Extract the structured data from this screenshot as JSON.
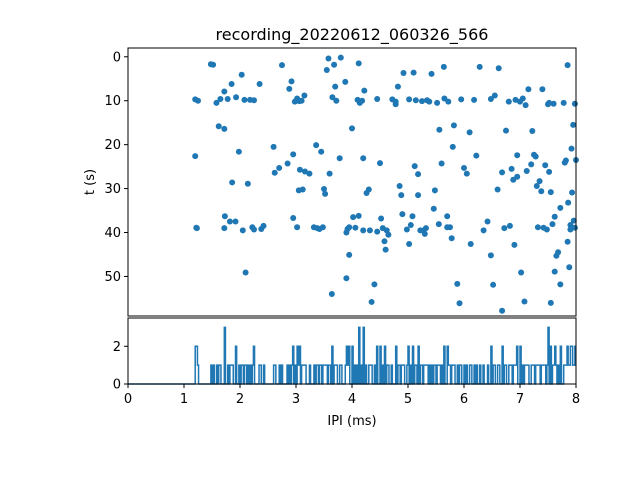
{
  "chart_data": [
    {
      "type": "scatter",
      "title": "recording_20220612_060326_566",
      "xlabel": "",
      "ylabel": "t (s)",
      "xlim": [
        0,
        8
      ],
      "ylim": [
        59,
        -2
      ],
      "yticks": [
        0,
        10,
        20,
        30,
        40,
        50
      ],
      "marker_color": "#1f77b4",
      "points": [
        [
          1.48,
          1.7
        ],
        [
          1.52,
          1.8
        ],
        [
          1.58,
          10.5
        ],
        [
          1.65,
          9.6
        ],
        [
          1.72,
          7.9
        ],
        [
          1.78,
          9.6
        ],
        [
          1.85,
          6.2
        ],
        [
          1.93,
          9.2
        ],
        [
          2.03,
          4.1
        ],
        [
          2.08,
          9.8
        ],
        [
          2.18,
          9.8
        ],
        [
          2.25,
          9.9
        ],
        [
          2.35,
          6.2
        ],
        [
          1.2,
          9.7
        ],
        [
          1.25,
          10
        ],
        [
          1.62,
          15.8
        ],
        [
          1.72,
          16.4
        ],
        [
          1.98,
          21.6
        ],
        [
          2.6,
          20.5
        ],
        [
          1.72,
          39
        ],
        [
          1.73,
          36.3
        ],
        [
          1.82,
          37.5
        ],
        [
          1.86,
          28.6
        ],
        [
          1.92,
          37.5
        ],
        [
          2.05,
          39.5
        ],
        [
          2.14,
          28.9
        ],
        [
          2.22,
          38.8
        ],
        [
          2.25,
          39.3
        ],
        [
          2.38,
          39.2
        ],
        [
          2.42,
          38.5
        ],
        [
          1.2,
          22.6
        ],
        [
          1.22,
          38.9
        ],
        [
          1.23,
          39
        ],
        [
          2.1,
          49.1
        ],
        [
          2.75,
          1.9
        ],
        [
          2.92,
          5.6
        ],
        [
          2.95,
          36.7
        ],
        [
          2.98,
          10.2
        ],
        [
          3.02,
          9.5
        ],
        [
          3.06,
          10.1
        ],
        [
          3.1,
          10
        ],
        [
          3.15,
          8.8
        ],
        [
          3.02,
          38.8
        ],
        [
          3.05,
          30.4
        ],
        [
          3.07,
          25.7
        ],
        [
          3.12,
          30.2
        ],
        [
          3.16,
          26.1
        ],
        [
          3.24,
          26.6
        ],
        [
          3.32,
          38.8
        ],
        [
          3.38,
          39
        ],
        [
          3.42,
          39.2
        ],
        [
          3.48,
          38.8
        ],
        [
          3.55,
          3
        ],
        [
          3.58,
          0.4
        ],
        [
          3.64,
          54
        ],
        [
          3.68,
          1.8
        ],
        [
          3.72,
          10
        ],
        [
          3.78,
          23.1
        ],
        [
          3.88,
          5.7
        ],
        [
          3.9,
          40
        ],
        [
          3.92,
          39.2
        ],
        [
          3.95,
          38.8
        ],
        [
          4.0,
          16.3
        ],
        [
          4.02,
          36.5
        ],
        [
          4.06,
          38.9
        ],
        [
          4.1,
          9.8
        ],
        [
          4.12,
          1.5
        ],
        [
          4.14,
          10.5
        ],
        [
          4.18,
          10
        ],
        [
          4.2,
          23.1
        ],
        [
          4.22,
          7.7
        ],
        [
          4.26,
          31
        ],
        [
          4.3,
          30.2
        ],
        [
          4.32,
          39.5
        ],
        [
          4.35,
          55.8
        ],
        [
          4.4,
          51.8
        ],
        [
          4.45,
          9.6
        ],
        [
          4.52,
          36.8
        ],
        [
          4.55,
          39
        ],
        [
          4.58,
          42
        ],
        [
          4.62,
          39.5
        ],
        [
          4.65,
          40.5
        ],
        [
          4.72,
          9.7
        ],
        [
          4.78,
          10.2
        ],
        [
          4.85,
          29.4
        ],
        [
          4.88,
          31.5
        ],
        [
          4.92,
          3.7
        ],
        [
          4.98,
          39.3
        ],
        [
          5.02,
          9.7
        ],
        [
          5.1,
          3.6
        ],
        [
          5.14,
          9.9
        ],
        [
          5.18,
          31.5
        ],
        [
          5.22,
          39.5
        ],
        [
          5.25,
          10.1
        ],
        [
          5.28,
          39.5
        ],
        [
          5.3,
          40.3
        ],
        [
          5.34,
          9.9
        ],
        [
          5.38,
          10.2
        ],
        [
          5.42,
          3.9
        ],
        [
          5.46,
          34.6
        ],
        [
          5.52,
          10.5
        ],
        [
          5.56,
          16.6
        ],
        [
          5.6,
          24.3
        ],
        [
          5.64,
          2.3
        ],
        [
          5.7,
          38.8
        ],
        [
          5.72,
          10.2
        ],
        [
          5.78,
          41.3
        ],
        [
          2.62,
          26.4
        ],
        [
          2.7,
          25.3
        ],
        [
          2.85,
          24.3
        ],
        [
          2.88,
          7.3
        ],
        [
          2.95,
          22.2
        ],
        [
          3.36,
          20.1
        ],
        [
          3.45,
          21.6
        ],
        [
          3.5,
          30.1
        ],
        [
          3.52,
          31.2
        ],
        [
          3.6,
          26.6
        ],
        [
          3.65,
          9.2
        ],
        [
          3.7,
          6.8
        ],
        [
          3.8,
          0.2
        ],
        [
          3.9,
          50.4
        ],
        [
          3.95,
          45.1
        ],
        [
          4.12,
          36.2
        ],
        [
          4.2,
          39.5
        ],
        [
          4.45,
          39.8
        ],
        [
          4.5,
          24.2
        ],
        [
          4.6,
          43.9
        ],
        [
          4.78,
          10.8
        ],
        [
          4.82,
          6.8
        ],
        [
          4.9,
          35.8
        ],
        [
          5.02,
          42.6
        ],
        [
          5.05,
          38.3
        ],
        [
          5.08,
          36.3
        ],
        [
          5.12,
          24.9
        ],
        [
          5.18,
          26.7
        ],
        [
          5.32,
          39
        ],
        [
          5.48,
          30.4
        ],
        [
          5.55,
          38.1
        ],
        [
          5.65,
          9.5
        ],
        [
          5.7,
          36.3
        ],
        [
          5.75,
          38.8
        ],
        [
          5.8,
          20.5
        ],
        [
          5.82,
          15.6
        ],
        [
          5.88,
          51.7
        ],
        [
          5.92,
          56.1
        ],
        [
          5.95,
          9.7
        ],
        [
          6.0,
          25.3
        ],
        [
          6.05,
          26.6
        ],
        [
          6.1,
          17.2
        ],
        [
          6.12,
          42.6
        ],
        [
          6.18,
          9.8
        ],
        [
          6.22,
          22.5
        ],
        [
          6.28,
          2.3
        ],
        [
          6.35,
          39.5
        ],
        [
          6.42,
          37.5
        ],
        [
          6.48,
          9.6
        ],
        [
          6.55,
          8.8
        ],
        [
          6.62,
          2.6
        ],
        [
          6.68,
          26.3
        ],
        [
          6.72,
          39
        ],
        [
          6.8,
          10.2
        ],
        [
          6.85,
          25.5
        ],
        [
          6.92,
          9.8
        ],
        [
          6.95,
          27.3
        ],
        [
          7.0,
          10.2
        ],
        [
          7.05,
          9.5
        ],
        [
          7.1,
          11
        ],
        [
          7.15,
          7.4
        ],
        [
          7.2,
          24.5
        ],
        [
          7.25,
          22.3
        ],
        [
          7.3,
          29.4
        ],
        [
          7.32,
          38.8
        ],
        [
          7.38,
          30.6
        ],
        [
          7.42,
          38.9
        ],
        [
          7.48,
          39.3
        ],
        [
          7.52,
          10.5
        ],
        [
          7.58,
          38.1
        ],
        [
          7.62,
          36.4
        ],
        [
          7.68,
          44.5
        ],
        [
          7.72,
          51.8
        ],
        [
          7.78,
          10.5
        ],
        [
          7.82,
          23.6
        ],
        [
          7.86,
          33.2
        ],
        [
          7.9,
          38.3
        ],
        [
          7.95,
          15.5
        ],
        [
          8.0,
          23.5
        ],
        [
          6.48,
          45.2
        ],
        [
          6.52,
          51.9
        ],
        [
          6.6,
          30.2
        ],
        [
          6.68,
          57.8
        ],
        [
          6.75,
          16.8
        ],
        [
          6.82,
          38.5
        ],
        [
          6.88,
          28
        ],
        [
          6.9,
          42.8
        ],
        [
          6.95,
          22.4
        ],
        [
          7.02,
          49.1
        ],
        [
          7.08,
          55.7
        ],
        [
          7.12,
          26
        ],
        [
          7.22,
          16.9
        ],
        [
          7.28,
          22.7
        ],
        [
          7.35,
          28.3
        ],
        [
          7.4,
          7.4
        ],
        [
          7.45,
          24.7
        ],
        [
          7.5,
          10.8
        ],
        [
          7.52,
          26.2
        ],
        [
          7.55,
          30.8
        ],
        [
          7.6,
          10.7
        ],
        [
          7.62,
          48.9
        ],
        [
          7.65,
          45.3
        ],
        [
          7.72,
          34.4
        ],
        [
          7.8,
          24.1
        ],
        [
          7.85,
          42.1
        ],
        [
          7.88,
          47.9
        ],
        [
          7.9,
          39.3
        ],
        [
          7.93,
          30.9
        ],
        [
          7.96,
          37.3
        ],
        [
          7.98,
          38.9
        ],
        [
          7.98,
          10.7
        ],
        [
          7.85,
          1.9
        ],
        [
          7.92,
          20.9
        ],
        [
          7.55,
          56
        ]
      ]
    },
    {
      "type": "line",
      "xlabel": "IPI (ms)",
      "ylabel": "",
      "xlim": [
        0,
        8
      ],
      "ylim": [
        0,
        3.5
      ],
      "xticks": [
        0,
        1,
        2,
        3,
        4,
        5,
        6,
        7,
        8
      ],
      "yticks": [
        0,
        2
      ],
      "line_color": "#1f77b4",
      "bin_width": 0.02,
      "counts": []
    }
  ]
}
